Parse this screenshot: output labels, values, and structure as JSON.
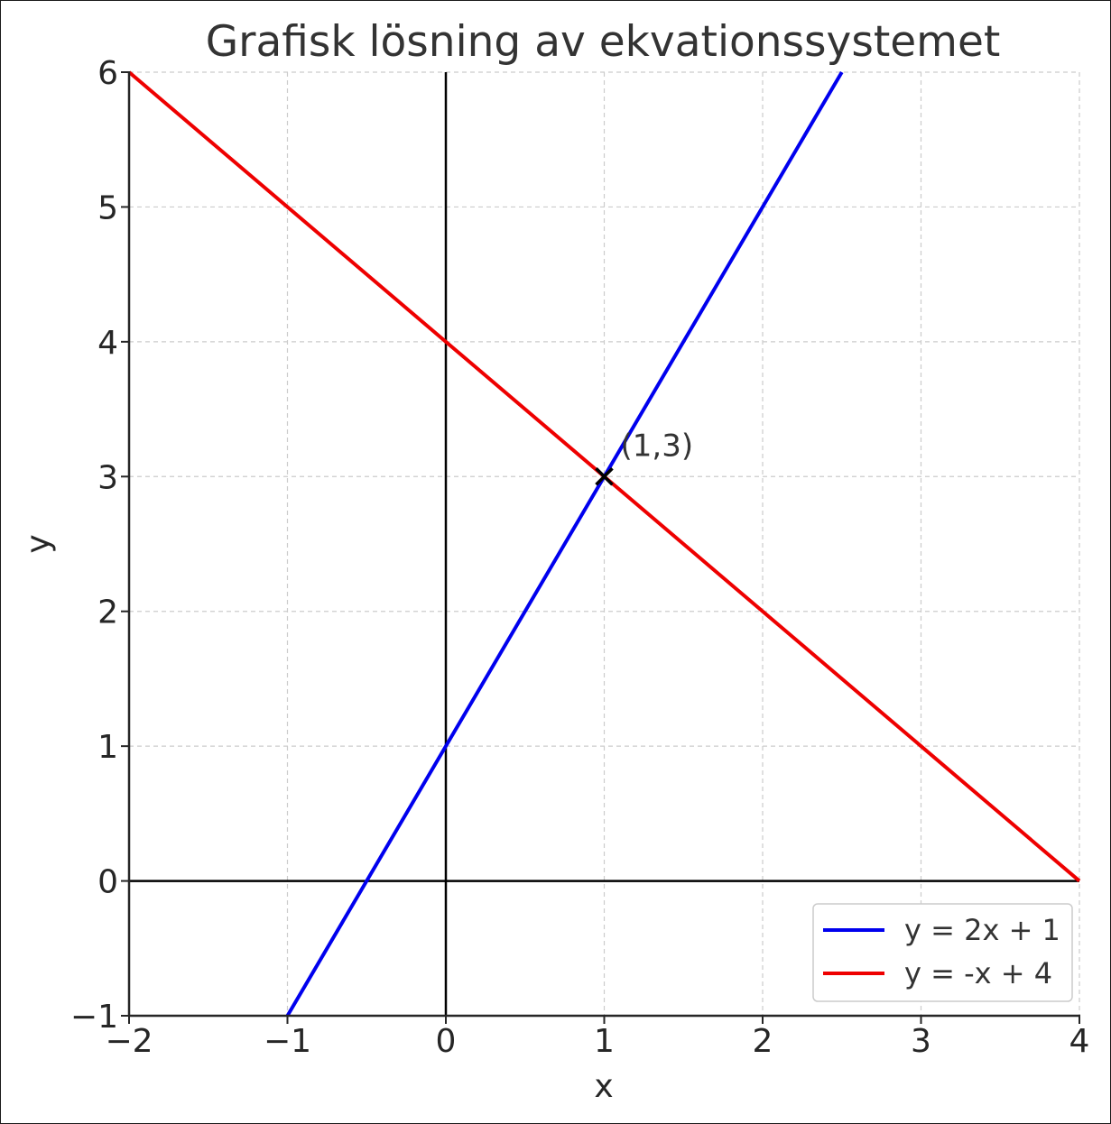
{
  "chart_data": {
    "type": "line",
    "title": "Grafisk lösning av ekvationssystemet",
    "xlabel": "x",
    "ylabel": "y",
    "xlim": [
      -2,
      4
    ],
    "ylim": [
      -1,
      6
    ],
    "x_ticks": [
      -2,
      -1,
      0,
      1,
      2,
      3,
      4
    ],
    "y_ticks": [
      -1,
      0,
      1,
      2,
      3,
      4,
      5,
      6
    ],
    "x_tick_labels": [
      "−2",
      "−1",
      "0",
      "1",
      "2",
      "3",
      "4"
    ],
    "y_tick_labels": [
      "−1",
      "0",
      "1",
      "2",
      "3",
      "4",
      "5",
      "6"
    ],
    "grid": true,
    "legend_position": "bottom-right",
    "series": [
      {
        "name": "y = 2x + 1",
        "color": "#0000ee",
        "points": [
          [
            -1,
            -1
          ],
          [
            2.5,
            6
          ]
        ]
      },
      {
        "name": "y = -x + 4",
        "color": "#ee0000",
        "points": [
          [
            -2,
            6
          ],
          [
            4,
            0
          ]
        ]
      }
    ],
    "annotations": [
      {
        "marker": "x",
        "x": 1,
        "y": 3,
        "text": "(1,3)",
        "color": "#000000"
      }
    ],
    "axis_lines": [
      {
        "orientation": "horizontal",
        "value": 0
      },
      {
        "orientation": "vertical",
        "value": 0
      }
    ]
  }
}
